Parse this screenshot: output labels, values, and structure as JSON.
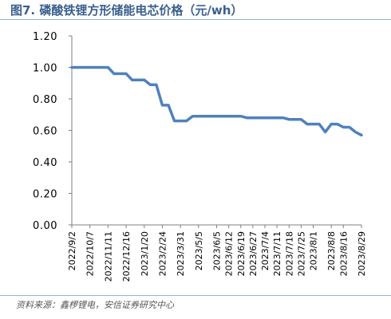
{
  "figure": {
    "title": "图7. 磷酸铁锂方形储能电芯价格（元/wh）",
    "source": "资料来源：鑫椤锂电，安信证券研究中心"
  },
  "chart_data": {
    "type": "line",
    "title": "",
    "xlabel": "",
    "ylabel": "",
    "ylim": [
      0,
      1.2
    ],
    "y_ticks": [
      "0.00",
      "0.20",
      "0.40",
      "0.60",
      "0.80",
      "1.00",
      "1.20"
    ],
    "x_tick_labels": [
      "2022/9/2",
      "2022/10/7",
      "2022/11/11",
      "2022/12/16",
      "2023/1/20",
      "2023/2/24",
      "2023/3/31",
      "2023/5/5",
      "2023/6/5",
      "2023/6/12",
      "2023/6/19",
      "2023/6/27",
      "2023/7/4",
      "2023/7/11",
      "2023/7/18",
      "2023/7/25",
      "2023/8/1",
      "2023/8/8",
      "2023/8/16",
      "2023/8/29"
    ],
    "grid": false,
    "legend": "none",
    "line_color": "#4f81bd",
    "series": [
      {
        "x": [
          "2022/9/2",
          "2022/9/16",
          "2022/9/30",
          "2022/10/7",
          "2022/10/21",
          "2022/11/4",
          "2022/11/11",
          "2022/11/25",
          "2022/12/9",
          "2022/12/16",
          "2022/12/30",
          "2023/1/13",
          "2023/1/20",
          "2023/2/3",
          "2023/2/17",
          "2023/2/24",
          "2023/3/10",
          "2023/3/24",
          "2023/3/31",
          "2023/4/14",
          "2023/4/28",
          "2023/5/5",
          "2023/5/19",
          "2023/5/26",
          "2023/6/5",
          "2023/6/8",
          "2023/6/12",
          "2023/6/15",
          "2023/6/19",
          "2023/6/23",
          "2023/6/27",
          "2023/6/30",
          "2023/7/4",
          "2023/7/7",
          "2023/7/11",
          "2023/7/14",
          "2023/7/18",
          "2023/7/21",
          "2023/7/25",
          "2023/7/28",
          "2023/8/1",
          "2023/8/3",
          "2023/8/4",
          "2023/8/8",
          "2023/8/11",
          "2023/8/16",
          "2023/8/22",
          "2023/8/25",
          "2023/8/29"
        ],
        "values": [
          1.0,
          1.0,
          1.0,
          1.0,
          1.0,
          1.0,
          1.0,
          0.96,
          0.96,
          0.96,
          0.92,
          0.92,
          0.92,
          0.89,
          0.89,
          0.76,
          0.76,
          0.66,
          0.66,
          0.66,
          0.69,
          0.69,
          0.69,
          0.69,
          0.69,
          0.69,
          0.69,
          0.69,
          0.69,
          0.68,
          0.68,
          0.68,
          0.68,
          0.68,
          0.68,
          0.68,
          0.67,
          0.67,
          0.67,
          0.64,
          0.64,
          0.64,
          0.59,
          0.64,
          0.64,
          0.62,
          0.62,
          0.59,
          0.57
        ]
      }
    ]
  }
}
